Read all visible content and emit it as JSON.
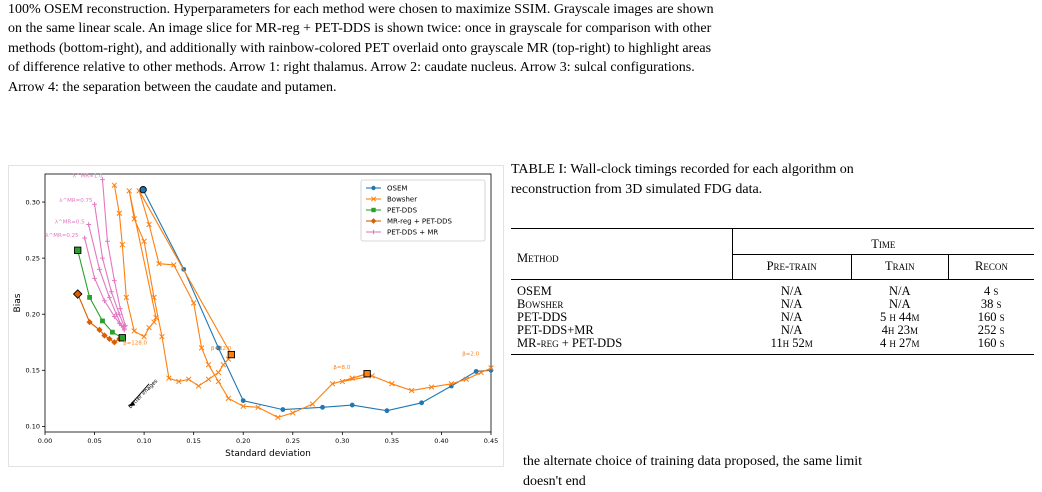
{
  "figure_caption": {
    "lines": [
      "100% OSEM reconstruction. Hyperparameters for each method were chosen to maximize SSIM. Grayscale images are shown",
      "on the same linear scale. An image slice for MR-reg + PET-DDS is shown twice: once in grayscale for comparison with other",
      "methods (bottom-right), and additionally with rainbow-colored PET overlaid onto grayscale MR (top-right) to highlight areas",
      "of difference relative to other methods. Arrow 1: right thalamus. Arrow 2: caudate nucleus. Arrow 3: sulcal configurations.",
      "Arrow 4: the separation between the caudate and putamen."
    ]
  },
  "chart_data": {
    "type": "line",
    "xlabel": "Standard deviation",
    "ylabel": "Bias",
    "xlim": [
      0.0,
      0.45
    ],
    "ylim": [
      0.095,
      0.325
    ],
    "xticks": [
      "0.00",
      "0.05",
      "0.10",
      "0.15",
      "0.20",
      "0.25",
      "0.30",
      "0.35",
      "0.40",
      "0.45"
    ],
    "yticks": [
      "0.10",
      "0.15",
      "0.20",
      "0.25",
      "0.30"
    ],
    "legend_position": "top-right",
    "annotation_arrow_label": "Better images",
    "series": [
      {
        "name": "OSEM",
        "color": "#1f77b4",
        "marker": "circle",
        "points": [
          [
            0.099,
            0.311
          ],
          [
            0.14,
            0.24
          ],
          [
            0.175,
            0.17
          ],
          [
            0.2,
            0.123
          ],
          [
            0.24,
            0.115
          ],
          [
            0.28,
            0.117
          ],
          [
            0.31,
            0.119
          ],
          [
            0.345,
            0.114
          ],
          [
            0.38,
            0.121
          ],
          [
            0.41,
            0.136
          ],
          [
            0.435,
            0.149
          ],
          [
            0.45,
            0.15
          ]
        ]
      },
      {
        "name": "Bowsher",
        "color": "#ff7f0e",
        "marker": "x",
        "points": [
          [
            0.07,
            0.315
          ],
          [
            0.075,
            0.29
          ],
          [
            0.078,
            0.262
          ],
          [
            0.082,
            0.215
          ],
          [
            0.09,
            0.185
          ],
          [
            0.1,
            0.18
          ],
          [
            0.105,
            0.188
          ],
          [
            0.11,
            0.193
          ],
          [
            0.112,
            0.197
          ],
          [
            0.085,
            0.31
          ],
          [
            0.09,
            0.285
          ],
          [
            0.1,
            0.265
          ],
          [
            0.11,
            0.215
          ],
          [
            0.118,
            0.18
          ],
          [
            0.125,
            0.143
          ],
          [
            0.135,
            0.14
          ],
          [
            0.145,
            0.142
          ],
          [
            0.155,
            0.136
          ],
          [
            0.165,
            0.142
          ],
          [
            0.175,
            0.148
          ],
          [
            0.18,
            0.155
          ],
          [
            0.185,
            0.16
          ],
          [
            0.188,
            0.164
          ],
          [
            0.095,
            0.31
          ],
          [
            0.105,
            0.28
          ],
          [
            0.115,
            0.245
          ],
          [
            0.13,
            0.244
          ],
          [
            0.15,
            0.21
          ],
          [
            0.158,
            0.17
          ],
          [
            0.165,
            0.155
          ],
          [
            0.175,
            0.14
          ],
          [
            0.185,
            0.125
          ],
          [
            0.2,
            0.118
          ],
          [
            0.215,
            0.117
          ],
          [
            0.235,
            0.108
          ],
          [
            0.25,
            0.112
          ],
          [
            0.27,
            0.12
          ],
          [
            0.29,
            0.138
          ],
          [
            0.31,
            0.143
          ],
          [
            0.325,
            0.147
          ],
          [
            0.3,
            0.14
          ],
          [
            0.33,
            0.145
          ],
          [
            0.35,
            0.138
          ],
          [
            0.37,
            0.132
          ],
          [
            0.39,
            0.135
          ],
          [
            0.41,
            0.138
          ],
          [
            0.425,
            0.142
          ],
          [
            0.44,
            0.148
          ],
          [
            0.45,
            0.152
          ]
        ]
      },
      {
        "name": "PET-DDS",
        "color": "#2ca02c",
        "marker": "square",
        "points": [
          [
            0.033,
            0.257
          ],
          [
            0.045,
            0.215
          ],
          [
            0.058,
            0.194
          ],
          [
            0.068,
            0.184
          ],
          [
            0.078,
            0.179
          ]
        ]
      },
      {
        "name": "MR-reg + PET-DDS",
        "color": "#d95f02",
        "marker": "diamond",
        "points": [
          [
            0.033,
            0.218
          ],
          [
            0.045,
            0.193
          ],
          [
            0.055,
            0.186
          ],
          [
            0.06,
            0.181
          ],
          [
            0.065,
            0.178
          ],
          [
            0.07,
            0.175
          ],
          [
            0.075,
            0.178
          ]
        ]
      },
      {
        "name": "PET-DDS + MR",
        "color": "#e377c2",
        "marker": "plus",
        "points_by_lambda": [
          [
            [
              0.04,
              0.268
            ],
            [
              0.05,
              0.232
            ],
            [
              0.06,
              0.212
            ],
            [
              0.07,
              0.198
            ],
            [
              0.075,
              0.192
            ],
            [
              0.08,
              0.187
            ]
          ],
          [
            [
              0.044,
              0.28
            ],
            [
              0.055,
              0.24
            ],
            [
              0.065,
              0.215
            ],
            [
              0.072,
              0.2
            ],
            [
              0.077,
              0.19
            ],
            [
              0.08,
              0.186
            ]
          ],
          [
            [
              0.05,
              0.298
            ],
            [
              0.058,
              0.25
            ],
            [
              0.067,
              0.22
            ],
            [
              0.075,
              0.2
            ],
            [
              0.08,
              0.189
            ]
          ],
          [
            [
              0.058,
              0.32
            ],
            [
              0.063,
              0.265
            ],
            [
              0.07,
              0.23
            ],
            [
              0.076,
              0.205
            ],
            [
              0.081,
              0.19
            ]
          ]
        ]
      }
    ],
    "highlight_markers": [
      {
        "series": "OSEM",
        "point": [
          0.099,
          0.311
        ]
      },
      {
        "series": "Bowsher",
        "point": [
          0.188,
          0.164
        ]
      },
      {
        "series": "Bowsher",
        "point": [
          0.325,
          0.147
        ]
      },
      {
        "series": "PET-DDS",
        "point": [
          0.078,
          0.179
        ]
      },
      {
        "series": "MR-reg + PET-DDS",
        "point": [
          0.033,
          0.218
        ]
      },
      {
        "series": "PET-DDS",
        "point": [
          0.033,
          0.257
        ]
      }
    ],
    "curve_labels": [
      {
        "text": "λ^MR=1.0",
        "point": [
          0.06,
          0.322
        ],
        "color": "#e377c2"
      },
      {
        "text": "λ^MR=0.75",
        "point": [
          0.05,
          0.3
        ],
        "color": "#e377c2"
      },
      {
        "text": "λ^MR=0.5",
        "point": [
          0.042,
          0.281
        ],
        "color": "#e377c2"
      },
      {
        "text": "λ^MR=0.25",
        "point": [
          0.036,
          0.269
        ],
        "color": "#e377c2"
      },
      {
        "text": "β=128.0",
        "point": [
          0.105,
          0.173
        ],
        "color": "#ff7f0e"
      },
      {
        "text": "β=32.0",
        "point": [
          0.19,
          0.168
        ],
        "color": "#ff7f0e"
      },
      {
        "text": "β=8.0",
        "point": [
          0.31,
          0.151
        ],
        "color": "#ff7f0e"
      },
      {
        "text": "β=2.0",
        "point": [
          0.44,
          0.163
        ],
        "color": "#ff7f0e"
      }
    ]
  },
  "table": {
    "caption_lines": [
      "TABLE I: Wall-clock timings recorded for each algorithm on",
      "reconstruction from 3D simulated FDG data."
    ],
    "header_method": "Method",
    "header_time": "Time",
    "subheaders": [
      "Pre-train",
      "Train",
      "Recon"
    ],
    "rows": [
      {
        "method": "OSEM",
        "pretrain": "N/A",
        "train": "N/A",
        "recon": "4 s"
      },
      {
        "method": "Bowsher",
        "pretrain": "N/A",
        "train": "N/A",
        "recon": "38 s"
      },
      {
        "method": "PET-DDS",
        "pretrain": "N/A",
        "train": "5 h 44m",
        "recon": "160 s"
      },
      {
        "method": "PET-DDS+MR",
        "pretrain": "N/A",
        "train": "4h 23m",
        "recon": "252 s"
      },
      {
        "method": "MR-reg + PET-DDS",
        "pretrain": "11h 52m",
        "train": "4 h 27m",
        "recon": "160 s"
      }
    ]
  },
  "body_text": {
    "lines": [
      "the alternate choice of training data proposed, the same limit",
      "doesn't end"
    ]
  }
}
